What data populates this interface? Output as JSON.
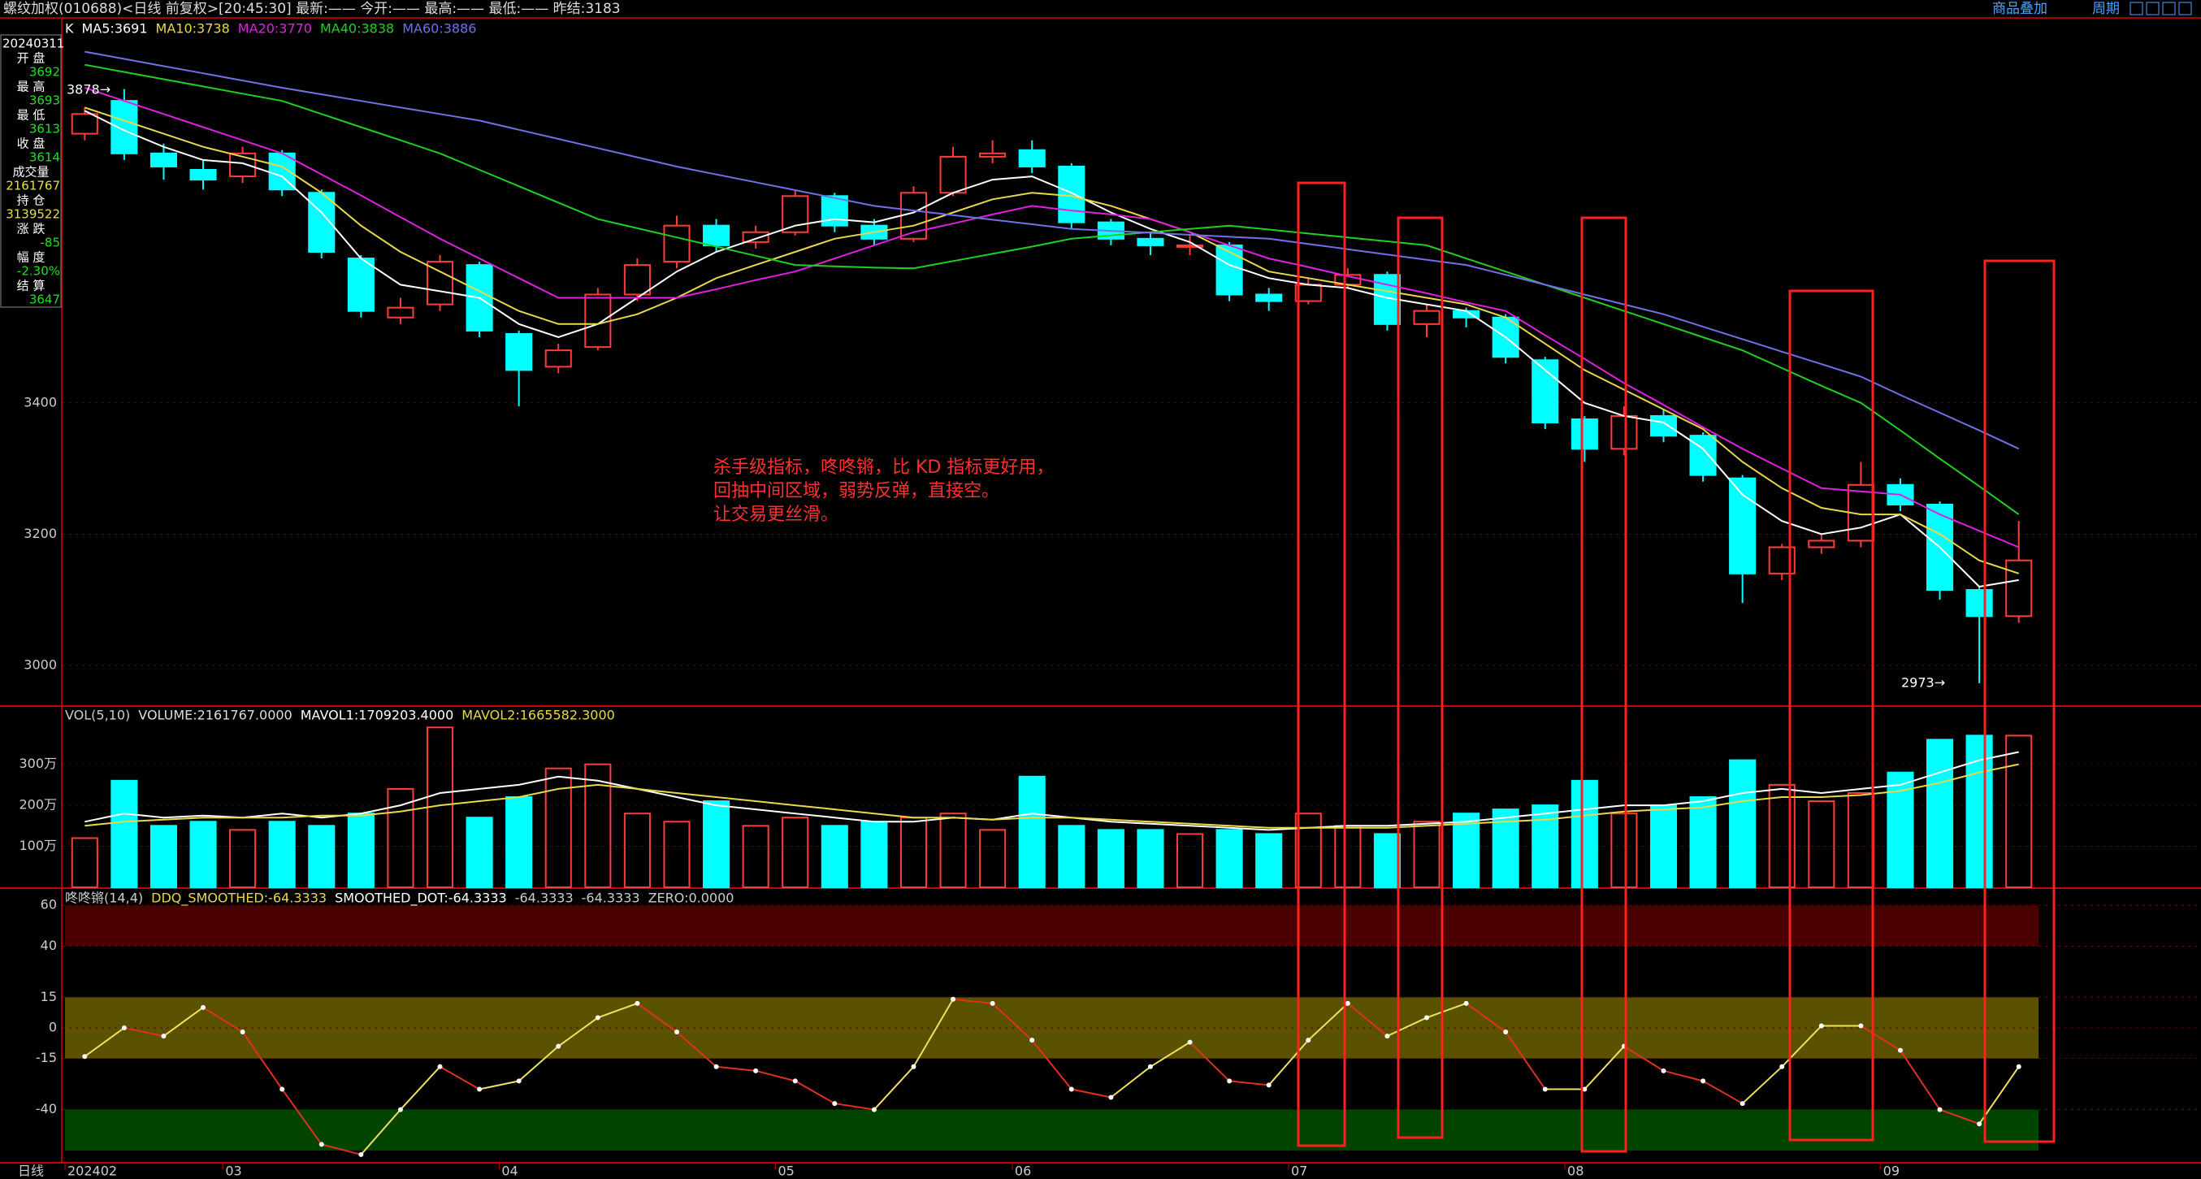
{
  "header": {
    "title": "螺纹加权(010688)<日线 前复权>[20:45:30] 最新:—— 今开:—— 最高:—— 最低:—— 昨结:3183",
    "links": [
      "商品叠加",
      "周期"
    ]
  },
  "info_panel": {
    "date": "20240311",
    "rows": [
      {
        "label": "开 盘",
        "value": "3692"
      },
      {
        "label": "最 高",
        "value": "3693"
      },
      {
        "label": "最 低",
        "value": "3613"
      },
      {
        "label": "收 盘",
        "value": "3614"
      },
      {
        "label": "成交量",
        "value": "2161767"
      },
      {
        "label": "持 仓",
        "value": "3139522"
      },
      {
        "label": "涨 跌",
        "value": "-85"
      },
      {
        "label": "幅 度",
        "value": "-2.30%"
      },
      {
        "label": "结 算",
        "value": "3647"
      }
    ]
  },
  "annotations": {
    "high_label": "3878→",
    "low_label": "2973→",
    "note": [
      "杀手级指标，咚咚锵，比 KD 指标更好用，",
      "回抽中间区域，弱势反弹，直接空。",
      "让交易更丝滑。"
    ]
  },
  "chart_data": [
    {
      "type": "candlestick",
      "title": "K",
      "up_color": "#ff3c3c",
      "down_color": "#00ffff",
      "open": [
        3810,
        3860,
        3780,
        3755,
        3745,
        3780,
        3720,
        3620,
        3530,
        3550,
        3610,
        3505,
        3455,
        3485,
        3565,
        3615,
        3670,
        3645,
        3660,
        3715,
        3670,
        3650,
        3720,
        3775,
        3785,
        3760,
        3675,
        3650,
        3640,
        3640,
        3565,
        3555,
        3580,
        3595,
        3520,
        3540,
        3530,
        3465,
        3375,
        3330,
        3380,
        3350,
        3285,
        3140,
        3180,
        3190,
        3275,
        3245,
        3115,
        3075
      ],
      "high": [
        3850,
        3878,
        3795,
        3770,
        3790,
        3785,
        3725,
        3625,
        3560,
        3625,
        3615,
        3510,
        3490,
        3575,
        3620,
        3685,
        3680,
        3670,
        3725,
        3720,
        3680,
        3730,
        3790,
        3800,
        3800,
        3765,
        3680,
        3660,
        3655,
        3645,
        3575,
        3590,
        3605,
        3600,
        3550,
        3545,
        3535,
        3470,
        3380,
        3395,
        3390,
        3355,
        3290,
        3185,
        3200,
        3310,
        3285,
        3250,
        3120,
        3220
      ],
      "low": [
        3800,
        3770,
        3740,
        3725,
        3735,
        3715,
        3620,
        3530,
        3520,
        3540,
        3500,
        3395,
        3445,
        3480,
        3555,
        3605,
        3630,
        3635,
        3655,
        3660,
        3640,
        3645,
        3715,
        3765,
        3750,
        3665,
        3640,
        3625,
        3625,
        3555,
        3540,
        3550,
        3575,
        3510,
        3500,
        3515,
        3460,
        3360,
        3310,
        3320,
        3340,
        3280,
        3095,
        3130,
        3170,
        3180,
        3235,
        3100,
        2973,
        3065
      ],
      "close": [
        3840,
        3780,
        3760,
        3740,
        3780,
        3725,
        3630,
        3540,
        3545,
        3615,
        3510,
        3450,
        3480,
        3565,
        3610,
        3670,
        3640,
        3660,
        3715,
        3670,
        3650,
        3720,
        3775,
        3780,
        3760,
        3675,
        3650,
        3640,
        3640,
        3565,
        3555,
        3580,
        3595,
        3520,
        3540,
        3530,
        3470,
        3370,
        3330,
        3380,
        3350,
        3290,
        3140,
        3180,
        3190,
        3275,
        3245,
        3115,
        3075,
        3160
      ],
      "series": [
        {
          "name": "MA5:3691",
          "color": "#ffffff",
          "values": [
            3845,
            3815,
            3790,
            3770,
            3765,
            3745,
            3690,
            3620,
            3580,
            3570,
            3560,
            3520,
            3500,
            3520,
            3560,
            3600,
            3630,
            3650,
            3670,
            3680,
            3675,
            3690,
            3720,
            3740,
            3745,
            3720,
            3690,
            3665,
            3645,
            3610,
            3590,
            3580,
            3575,
            3560,
            3550,
            3540,
            3500,
            3450,
            3400,
            3380,
            3370,
            3330,
            3260,
            3220,
            3200,
            3210,
            3230,
            3180,
            3120,
            3130
          ]
        },
        {
          "name": "MA10:3738",
          "color": "#e8d84a",
          "values": [
            3850,
            3830,
            3810,
            3790,
            3775,
            3760,
            3720,
            3670,
            3630,
            3600,
            3570,
            3540,
            3520,
            3520,
            3535,
            3560,
            3590,
            3610,
            3630,
            3650,
            3660,
            3670,
            3690,
            3710,
            3720,
            3715,
            3700,
            3680,
            3660,
            3630,
            3600,
            3590,
            3580,
            3570,
            3560,
            3550,
            3530,
            3490,
            3450,
            3420,
            3390,
            3360,
            3310,
            3270,
            3240,
            3230,
            3230,
            3200,
            3160,
            3140
          ]
        },
        {
          "name": "MA20:3770",
          "color": "#e020e0",
          "values": [
            3880,
            3860,
            3840,
            3820,
            3800,
            3780,
            3748,
            3716,
            3683,
            3650,
            3620,
            3590,
            3560,
            3560,
            3560,
            3560,
            3573,
            3587,
            3600,
            3620,
            3640,
            3660,
            3673,
            3687,
            3700,
            3693,
            3687,
            3680,
            3660,
            3640,
            3620,
            3607,
            3593,
            3580,
            3567,
            3553,
            3540,
            3503,
            3467,
            3430,
            3397,
            3363,
            3330,
            3300,
            3270,
            3265,
            3260,
            3230,
            3205,
            3180
          ]
        },
        {
          "name": "MA40:3838",
          "color": "#20d020",
          "values": [
            3915,
            3904,
            3893,
            3882,
            3871,
            3860,
            3840,
            3820,
            3800,
            3780,
            3755,
            3730,
            3705,
            3680,
            3666,
            3652,
            3638,
            3624,
            3610,
            3608,
            3606,
            3605,
            3616,
            3627,
            3638,
            3650,
            3655,
            3660,
            3665,
            3670,
            3664,
            3658,
            3652,
            3646,
            3640,
            3620,
            3600,
            3580,
            3560,
            3540,
            3520,
            3500,
            3480,
            3453,
            3426,
            3400,
            3358,
            3315,
            3273,
            3230
          ]
        },
        {
          "name": "MA60:3886",
          "color": "#7070e8",
          "values": [
            3935,
            3924,
            3913,
            3902,
            3891,
            3880,
            3870,
            3860,
            3850,
            3840,
            3830,
            3816,
            3802,
            3788,
            3774,
            3760,
            3748,
            3736,
            3724,
            3712,
            3700,
            3693,
            3686,
            3679,
            3672,
            3665,
            3662,
            3659,
            3656,
            3653,
            3650,
            3642,
            3634,
            3626,
            3618,
            3610,
            3595,
            3580,
            3565,
            3550,
            3535,
            3516,
            3497,
            3478,
            3459,
            3440,
            3412,
            3385,
            3358,
            3330
          ]
        }
      ],
      "ylim": [
        2938,
        3984
      ],
      "yticks": [
        3000,
        3200,
        3400
      ],
      "grid": true
    },
    {
      "type": "bar",
      "title": "VOL(5,10)",
      "up_color": "#ff3c3c",
      "down_color": "#00ffff",
      "series": [
        {
          "name": "VOLUME:2161767.0000",
          "color": "#dddddd",
          "values": [
            1200000,
            2600000,
            1500000,
            1600000,
            1400000,
            1600000,
            1500000,
            1800000,
            2400000,
            3900000,
            1700000,
            2200000,
            2900000,
            3000000,
            1800000,
            1600000,
            2100000,
            1500000,
            1700000,
            1500000,
            1600000,
            1700000,
            1800000,
            1400000,
            2700000,
            1500000,
            1400000,
            1400000,
            1300000,
            1400000,
            1300000,
            1800000,
            1500000,
            1300000,
            1600000,
            1800000,
            1900000,
            2000000,
            2600000,
            1800000,
            2000000,
            2200000,
            3100000,
            2500000,
            2100000,
            2300000,
            2800000,
            3600000,
            3700000,
            3700000
          ]
        },
        {
          "name": "MAVOL1:1709203.4000",
          "color": "#ffffff",
          "values": [
            1600000,
            1800000,
            1700000,
            1750000,
            1700000,
            1800000,
            1700000,
            1800000,
            2000000,
            2300000,
            2400000,
            2500000,
            2700000,
            2600000,
            2400000,
            2200000,
            2000000,
            1900000,
            1800000,
            1700000,
            1600000,
            1600000,
            1700000,
            1650000,
            1800000,
            1700000,
            1600000,
            1550000,
            1500000,
            1450000,
            1400000,
            1450000,
            1500000,
            1500000,
            1550000,
            1600000,
            1700000,
            1800000,
            1900000,
            2000000,
            2000000,
            2100000,
            2300000,
            2400000,
            2300000,
            2400000,
            2500000,
            2800000,
            3100000,
            3300000
          ]
        },
        {
          "name": "MAVOL2:1665582.3000",
          "color": "#e8d84a",
          "values": [
            1500000,
            1600000,
            1650000,
            1700000,
            1700000,
            1700000,
            1750000,
            1750000,
            1850000,
            2000000,
            2100000,
            2200000,
            2400000,
            2500000,
            2400000,
            2300000,
            2200000,
            2100000,
            2000000,
            1900000,
            1800000,
            1700000,
            1700000,
            1650000,
            1700000,
            1700000,
            1650000,
            1600000,
            1550000,
            1500000,
            1450000,
            1450000,
            1450000,
            1450000,
            1500000,
            1550000,
            1600000,
            1650000,
            1750000,
            1850000,
            1900000,
            1950000,
            2100000,
            2200000,
            2200000,
            2250000,
            2350000,
            2550000,
            2800000,
            3000000
          ]
        }
      ],
      "ylim": [
        0,
        4420000
      ],
      "yticks": [
        {
          "value": 1000000,
          "label": "100万"
        },
        {
          "value": 2000000,
          "label": "200万"
        },
        {
          "value": 3000000,
          "label": "300万"
        }
      ]
    },
    {
      "type": "line",
      "title": "咚咚锵(14,4)",
      "up_color": "#f0e060",
      "down_color": "#e03020",
      "dot_color": "#ffffff",
      "legend": [
        {
          "text": "DDQ_SMOOTHED:-64.3333",
          "color": "#e8d84a"
        },
        {
          "text": "SMOOTHED_DOT:-64.3333",
          "color": "#ffffff"
        },
        {
          "text": "-64.3333",
          "color": "#cccccc"
        },
        {
          "text": "-64.3333",
          "color": "#cccccc"
        },
        {
          "text": "ZERO:0.0000",
          "color": "#cccccc"
        }
      ],
      "values": [
        -14,
        0,
        -4,
        10,
        -2,
        -30,
        -57,
        -62,
        -40,
        -19,
        -30,
        -26,
        -9,
        5,
        12,
        -2,
        -19,
        -21,
        -26,
        -37,
        -40,
        -19,
        14,
        12,
        -6,
        -30,
        -34,
        -19,
        -7,
        -26,
        -28,
        -6,
        12,
        -4,
        5,
        12,
        -2,
        -30,
        -30,
        -9,
        -21,
        -26,
        -37,
        -19,
        1,
        1,
        -11,
        -40,
        -47,
        -19
      ],
      "bands": [
        {
          "from": 40,
          "to": 60,
          "color": "#4a0000"
        },
        {
          "from": -15,
          "to": 15,
          "color": "#5a5200"
        },
        {
          "from": -60,
          "to": -40,
          "color": "#004400"
        }
      ],
      "x_label": "日线",
      "categories": [
        "202402",
        null,
        null,
        null,
        "03",
        null,
        null,
        null,
        null,
        null,
        null,
        "04",
        null,
        null,
        null,
        null,
        null,
        null,
        "05",
        null,
        null,
        null,
        null,
        null,
        "06",
        null,
        null,
        null,
        null,
        null,
        null,
        "07",
        null,
        null,
        null,
        null,
        null,
        null,
        "08",
        null,
        null,
        null,
        null,
        null,
        null,
        null,
        "09",
        null,
        null,
        null
      ],
      "ylim": [
        -66,
        68
      ],
      "yticks": [
        60,
        40,
        15,
        0,
        -15,
        -40
      ]
    }
  ]
}
